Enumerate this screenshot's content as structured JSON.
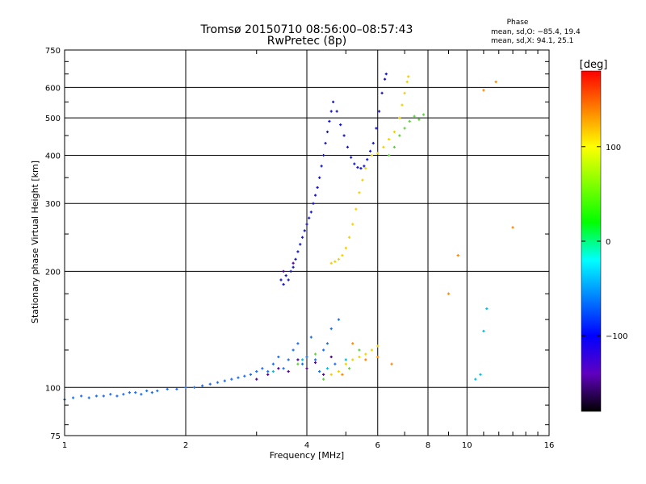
{
  "chart_data": {
    "type": "scatter",
    "title": "Tromsø 20150710 08:56:00–08:57:43",
    "subtitle": "RwPretec (8p)",
    "xlabel": "Frequency [MHz]",
    "ylabel": "Stationary phase Virtual Height [km]",
    "x_scale": "log2",
    "y_scale": "log",
    "xlim": [
      1,
      16
    ],
    "ylim": [
      75,
      750
    ],
    "x_ticks": [
      1,
      2,
      4,
      6,
      8,
      10,
      16
    ],
    "x_tick_labels": [
      "1",
      "2",
      "4",
      "6",
      "8",
      "10",
      "16"
    ],
    "y_ticks": [
      75,
      100,
      200,
      300,
      400,
      500,
      600,
      750
    ],
    "y_tick_labels": [
      "75",
      "100",
      "200",
      "300",
      "400",
      "500",
      "600",
      "750"
    ],
    "grid": true,
    "stats": {
      "title": "Phase",
      "line_o": "mean, sd,O: −85.4, 19.4",
      "line_x": "mean, sd,X:  94.1, 25.1"
    },
    "colorbar": {
      "label": "[deg]",
      "range": [
        -180,
        180
      ],
      "ticks": [
        100,
        0,
        -100
      ],
      "tick_labels": [
        "100",
        "0",
        "−100"
      ],
      "colors": [
        "#ff0000",
        "#ff8000",
        "#ffff00",
        "#80ff00",
        "#00ff00",
        "#00ffff",
        "#0080ff",
        "#0000ff",
        "#6000c0",
        "#000000"
      ]
    },
    "series": [
      {
        "phase_deg": -95,
        "color": "#1e6ef0",
        "points": [
          [
            1.0,
            93
          ],
          [
            1.05,
            94
          ],
          [
            1.1,
            95
          ],
          [
            1.15,
            94
          ],
          [
            1.2,
            95
          ],
          [
            1.25,
            95
          ],
          [
            1.3,
            96
          ],
          [
            1.35,
            95
          ],
          [
            1.4,
            96
          ],
          [
            1.45,
            97
          ],
          [
            1.5,
            97
          ],
          [
            1.55,
            96
          ],
          [
            1.6,
            98
          ],
          [
            1.65,
            97
          ],
          [
            1.7,
            98
          ],
          [
            1.8,
            99
          ],
          [
            1.9,
            99
          ],
          [
            2.0,
            100
          ],
          [
            2.1,
            100
          ],
          [
            2.2,
            101
          ],
          [
            2.3,
            102
          ],
          [
            2.4,
            103
          ],
          [
            2.5,
            104
          ],
          [
            2.6,
            105
          ],
          [
            2.7,
            106
          ],
          [
            2.8,
            107
          ],
          [
            2.9,
            108
          ],
          [
            3.0,
            110
          ],
          [
            3.1,
            112
          ],
          [
            3.2,
            110
          ],
          [
            3.3,
            115
          ],
          [
            3.4,
            120
          ],
          [
            3.5,
            112
          ],
          [
            3.6,
            118
          ],
          [
            3.7,
            125
          ],
          [
            3.8,
            130
          ],
          [
            3.9,
            115
          ],
          [
            4.0,
            120
          ],
          [
            4.1,
            135
          ],
          [
            4.2,
            118
          ],
          [
            4.3,
            110
          ],
          [
            4.4,
            125
          ],
          [
            4.5,
            130
          ],
          [
            4.6,
            142
          ],
          [
            4.7,
            115
          ],
          [
            4.8,
            150
          ]
        ]
      },
      {
        "phase_deg": -115,
        "color": "#1414c8",
        "points": [
          [
            3.45,
            190
          ],
          [
            3.5,
            185
          ],
          [
            3.55,
            195
          ],
          [
            3.6,
            190
          ],
          [
            3.65,
            200
          ],
          [
            3.7,
            205
          ],
          [
            3.75,
            215
          ],
          [
            3.8,
            225
          ],
          [
            3.85,
            235
          ],
          [
            3.9,
            245
          ],
          [
            3.95,
            255
          ],
          [
            4.0,
            265
          ],
          [
            4.05,
            275
          ],
          [
            4.1,
            285
          ],
          [
            4.15,
            300
          ],
          [
            4.2,
            315
          ],
          [
            4.25,
            330
          ],
          [
            4.3,
            350
          ],
          [
            4.35,
            375
          ],
          [
            4.4,
            400
          ],
          [
            4.45,
            430
          ],
          [
            4.5,
            460
          ],
          [
            4.55,
            490
          ],
          [
            4.6,
            520
          ],
          [
            4.65,
            550
          ],
          [
            4.75,
            520
          ],
          [
            4.85,
            480
          ],
          [
            4.95,
            450
          ],
          [
            5.05,
            420
          ],
          [
            5.15,
            395
          ],
          [
            5.25,
            380
          ],
          [
            5.35,
            372
          ],
          [
            5.45,
            370
          ],
          [
            5.55,
            375
          ],
          [
            5.65,
            390
          ],
          [
            5.75,
            410
          ],
          [
            5.85,
            430
          ],
          [
            5.95,
            470
          ],
          [
            6.05,
            520
          ],
          [
            6.15,
            580
          ],
          [
            6.25,
            630
          ],
          [
            6.3,
            650
          ]
        ]
      },
      {
        "phase_deg": 110,
        "color": "#f0d200",
        "points": [
          [
            4.6,
            210
          ],
          [
            4.7,
            212
          ],
          [
            4.8,
            215
          ],
          [
            4.9,
            220
          ],
          [
            5.0,
            230
          ],
          [
            5.1,
            245
          ],
          [
            5.2,
            265
          ],
          [
            5.3,
            290
          ],
          [
            5.4,
            320
          ],
          [
            5.5,
            345
          ],
          [
            5.6,
            370
          ],
          [
            5.8,
            400
          ],
          [
            6.0,
            405
          ],
          [
            6.2,
            420
          ],
          [
            6.4,
            440
          ],
          [
            6.6,
            460
          ],
          [
            6.8,
            500
          ],
          [
            6.9,
            540
          ],
          [
            7.0,
            580
          ],
          [
            7.1,
            620
          ],
          [
            7.15,
            640
          ],
          [
            4.6,
            108
          ],
          [
            4.8,
            110
          ],
          [
            5.0,
            115
          ],
          [
            5.2,
            118
          ],
          [
            5.4,
            120
          ],
          [
            5.6,
            122
          ],
          [
            5.8,
            125
          ],
          [
            6.0,
            128
          ]
        ]
      },
      {
        "phase_deg": 40,
        "color": "#60d040",
        "points": [
          [
            6.4,
            400
          ],
          [
            6.6,
            420
          ],
          [
            6.8,
            450
          ],
          [
            7.0,
            470
          ],
          [
            7.2,
            490
          ],
          [
            7.4,
            505
          ],
          [
            7.6,
            495
          ],
          [
            7.8,
            510
          ],
          [
            3.8,
            115
          ],
          [
            4.2,
            122
          ],
          [
            4.4,
            105
          ],
          [
            5.1,
            112
          ],
          [
            5.4,
            125
          ]
        ]
      },
      {
        "phase_deg": 60,
        "color": "#ff8800",
        "points": [
          [
            5.2,
            130
          ],
          [
            5.6,
            118
          ],
          [
            6.0,
            120
          ],
          [
            6.5,
            115
          ],
          [
            4.9,
            108
          ],
          [
            9.0,
            175
          ],
          [
            11.0,
            590
          ],
          [
            11.8,
            620
          ],
          [
            13.0,
            260
          ],
          [
            9.5,
            220
          ]
        ]
      },
      {
        "phase_deg": -155,
        "color": "#500090",
        "points": [
          [
            3.0,
            105
          ],
          [
            3.2,
            108
          ],
          [
            3.4,
            112
          ],
          [
            3.6,
            110
          ],
          [
            3.8,
            118
          ],
          [
            4.0,
            112
          ],
          [
            4.2,
            116
          ],
          [
            4.4,
            108
          ],
          [
            4.6,
            120
          ],
          [
            3.5,
            200
          ],
          [
            3.7,
            210
          ]
        ]
      },
      {
        "phase_deg": -40,
        "color": "#00c0e0",
        "points": [
          [
            3.3,
            110
          ],
          [
            3.9,
            118
          ],
          [
            4.5,
            112
          ],
          [
            5.0,
            118
          ],
          [
            10.5,
            105
          ],
          [
            11.0,
            140
          ],
          [
            11.2,
            160
          ],
          [
            10.8,
            108
          ]
        ]
      }
    ]
  }
}
